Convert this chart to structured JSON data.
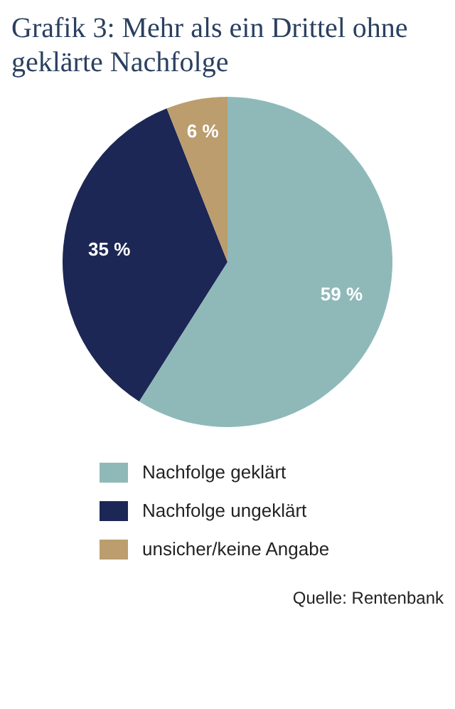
{
  "chart_data": {
    "type": "pie",
    "title": "Grafik 3: Mehr als ein Drittel ohne geklärte Nachfolge",
    "categories": [
      "Nachfolge geklärt",
      "Nachfolge ungeklärt",
      "unsicher/keine Angabe"
    ],
    "values": [
      59,
      35,
      6
    ],
    "colors": [
      "#8fb9b9",
      "#1c2755",
      "#bb9d6e"
    ],
    "value_labels": [
      "59 %",
      "35 %",
      "6 %"
    ],
    "legend": "bottom",
    "annotations": [
      "Quelle: Rentenbank"
    ]
  }
}
